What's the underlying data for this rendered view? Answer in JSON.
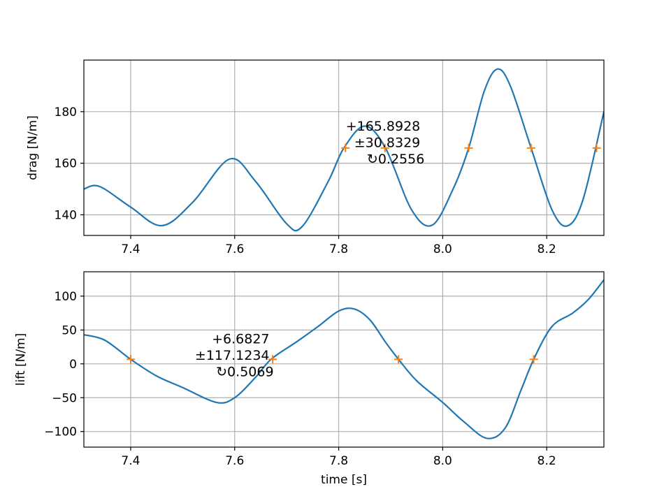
{
  "colors": {
    "line": "#1f77b4",
    "marker": "#ff7f0e",
    "grid": "#b0b0b0",
    "axes": "#000000"
  },
  "chart_data": [
    {
      "type": "line",
      "ylabel": "drag [N/m]",
      "xlabel": "",
      "xlim": [
        7.31,
        8.31
      ],
      "ylim": [
        132,
        200
      ],
      "xticks": [
        7.4,
        7.6,
        7.8,
        8.0,
        8.2
      ],
      "xtick_labels": [
        "7.4",
        "7.6",
        "7.8",
        "8.0",
        "8.2"
      ],
      "yticks": [
        140,
        160,
        180
      ],
      "ytick_labels": [
        "140",
        "160",
        "180"
      ],
      "grid": true,
      "series": [
        {
          "style": "line",
          "x": [
            7.31,
            7.34,
            7.4,
            7.46,
            7.52,
            7.59,
            7.64,
            7.7,
            7.73,
            7.78,
            7.81,
            7.85,
            7.89,
            7.94,
            7.98,
            8.02,
            8.05,
            8.08,
            8.105,
            8.13,
            8.17,
            8.21,
            8.24,
            8.27,
            8.31
          ],
          "y": [
            150.0,
            151.0,
            143.0,
            135.8,
            145.0,
            161.6,
            153.0,
            136.5,
            135.5,
            153.0,
            165.9,
            174.4,
            165.9,
            142.0,
            136.0,
            150.0,
            165.9,
            188.0,
            196.5,
            190.0,
            165.9,
            142.0,
            135.7,
            146.0,
            180.0
          ]
        },
        {
          "style": "markers",
          "marker": "+",
          "x": [
            7.813,
            7.889,
            8.05,
            8.17,
            8.296
          ],
          "y": [
            165.9,
            165.9,
            165.9,
            165.9,
            165.9
          ]
        }
      ],
      "annotation": {
        "lines": [
          "+165.8928",
          "±30.8329",
          "↻0.2556"
        ],
        "x": 7.965,
        "y": 172.7
      }
    },
    {
      "type": "line",
      "ylabel": "lift [N/m]",
      "xlabel": "time [s]",
      "xlim": [
        7.31,
        8.31
      ],
      "ylim": [
        -123,
        136
      ],
      "xticks": [
        7.4,
        7.6,
        7.8,
        8.0,
        8.2
      ],
      "xtick_labels": [
        "7.4",
        "7.6",
        "7.8",
        "8.0",
        "8.2"
      ],
      "yticks": [
        -100,
        -50,
        0,
        50,
        100
      ],
      "ytick_labels": [
        "−100",
        "−50",
        "0",
        "50",
        "100"
      ],
      "grid": true,
      "series": [
        {
          "style": "line",
          "x": [
            7.31,
            7.35,
            7.4,
            7.45,
            7.5,
            7.565,
            7.6,
            7.64,
            7.67,
            7.72,
            7.76,
            7.8,
            7.83,
            7.86,
            7.89,
            7.915,
            7.95,
            8.0,
            8.04,
            8.085,
            8.12,
            8.15,
            8.175,
            8.21,
            8.25,
            8.28,
            8.31
          ],
          "y": [
            43.0,
            35.0,
            6.7,
            -18.0,
            -35.0,
            -57.0,
            -50.0,
            -20.0,
            6.7,
            33.0,
            55.0,
            78.0,
            81.0,
            65.0,
            32.0,
            6.7,
            -25.0,
            -57.0,
            -85.0,
            -110.0,
            -95.0,
            -40.0,
            6.7,
            55.0,
            75.0,
            95.0,
            124.0
          ]
        },
        {
          "style": "markers",
          "marker": "+",
          "x": [
            7.4,
            7.673,
            7.915,
            8.175
          ],
          "y": [
            6.7,
            6.7,
            6.7,
            6.7
          ]
        }
      ],
      "annotation": {
        "lines": [
          "+6.6827",
          "±117.1234",
          "↻0.5069"
        ],
        "x": 7.675,
        "y": 30.0
      }
    }
  ]
}
